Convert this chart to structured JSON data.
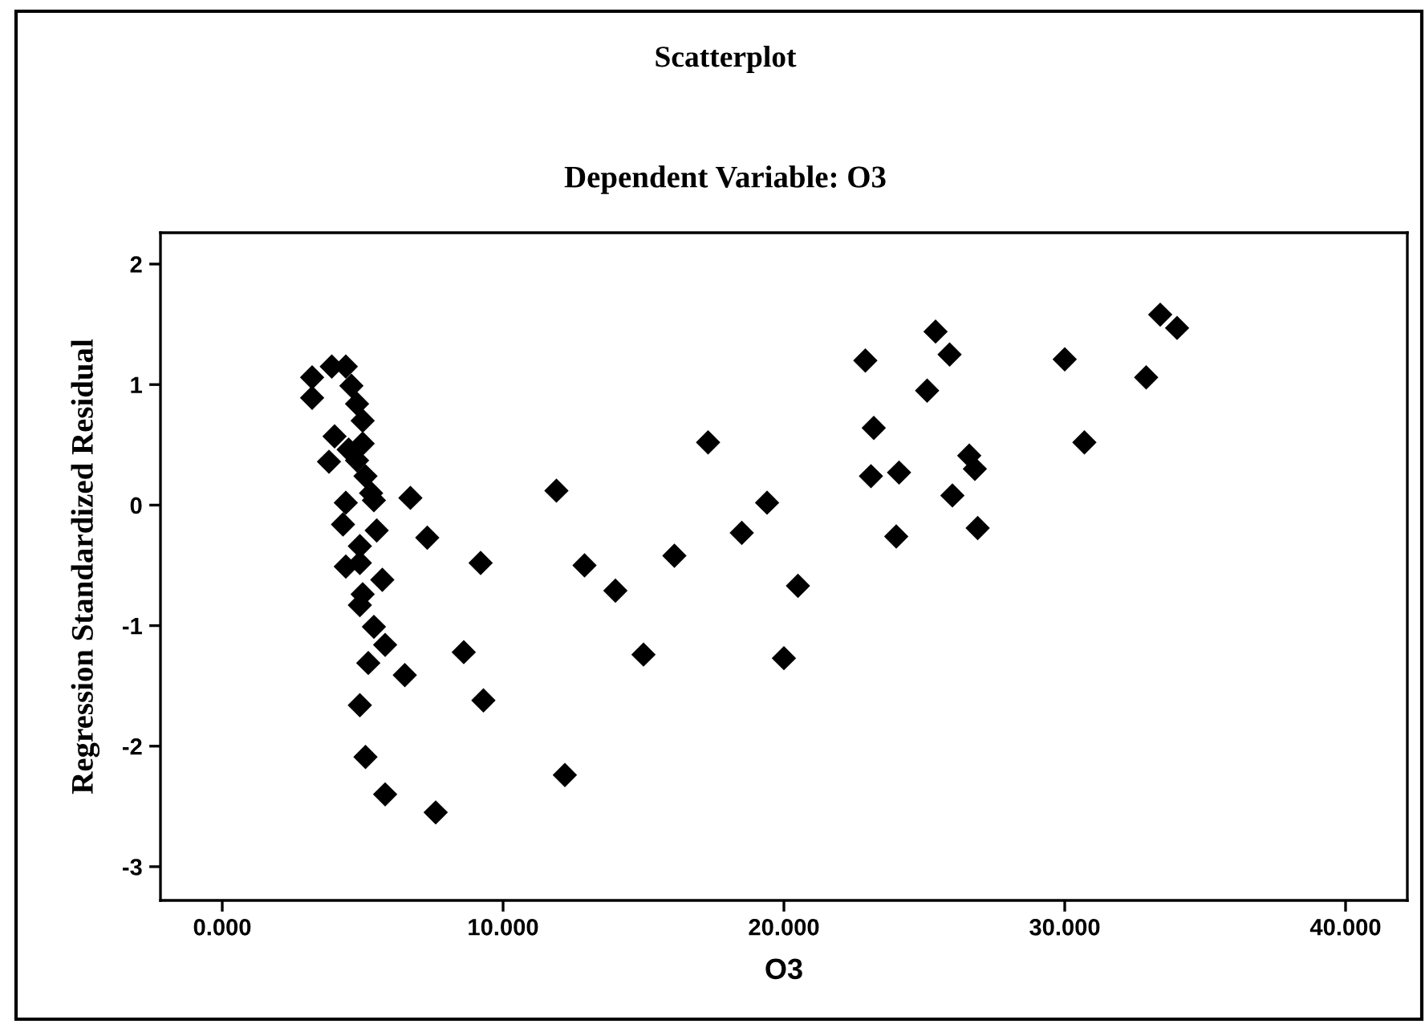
{
  "chart_data": {
    "type": "scatter",
    "title": "Scatterplot",
    "subtitle": "Dependent Variable: O3",
    "xlabel": "O3",
    "ylabel": "Regression Standardized Residual",
    "x": [
      3.2,
      3.2,
      3.9,
      4.4,
      4.6,
      4.8,
      5.0,
      4.0,
      5.0,
      3.8,
      4.8,
      4.5,
      5.1,
      5.3,
      4.4,
      5.4,
      6.7,
      4.3,
      5.5,
      7.3,
      4.9,
      9.2,
      4.4,
      4.9,
      5.7,
      5.0,
      4.9,
      5.4,
      5.8,
      8.6,
      5.2,
      6.5,
      4.9,
      9.3,
      5.1,
      5.8,
      7.6,
      11.9,
      12.9,
      14.0,
      15.0,
      12.2,
      16.1,
      17.3,
      18.5,
      19.4,
      20.5,
      20.0,
      22.9,
      23.2,
      23.1,
      24.1,
      24.0,
      25.1,
      25.4,
      25.9,
      26.6,
      26.8,
      26.0,
      26.9,
      30.0,
      30.7,
      32.9,
      33.4,
      34.0
    ],
    "values": [
      1.06,
      0.89,
      1.15,
      1.15,
      0.99,
      0.84,
      0.7,
      0.57,
      0.51,
      0.36,
      0.37,
      0.46,
      0.24,
      0.1,
      0.02,
      0.04,
      0.06,
      -0.16,
      -0.21,
      -0.27,
      -0.34,
      -0.48,
      -0.51,
      -0.48,
      -0.62,
      -0.74,
      -0.83,
      -1.01,
      -1.16,
      -1.22,
      -1.31,
      -1.41,
      -1.66,
      -1.62,
      -2.09,
      -2.4,
      -2.55,
      0.12,
      -0.5,
      -0.71,
      -1.24,
      -2.24,
      -0.42,
      0.52,
      -0.23,
      0.02,
      -0.67,
      -1.27,
      1.2,
      0.64,
      0.24,
      0.27,
      -0.26,
      0.95,
      1.44,
      1.25,
      0.41,
      0.3,
      0.08,
      -0.19,
      1.21,
      0.52,
      1.06,
      1.58,
      1.47
    ],
    "color": "#000000",
    "marker": "diamond",
    "xlim": [
      -2.2,
      42.2
    ],
    "ylim": [
      -3.28,
      2.26
    ],
    "xticks": [
      {
        "value": 0,
        "label": "0.000"
      },
      {
        "value": 10,
        "label": "10.000"
      },
      {
        "value": 20,
        "label": "20.000"
      },
      {
        "value": 30,
        "label": "30.000"
      },
      {
        "value": 40,
        "label": "40.000"
      }
    ],
    "yticks": [
      -3,
      -2,
      -1,
      0,
      1,
      2
    ]
  }
}
